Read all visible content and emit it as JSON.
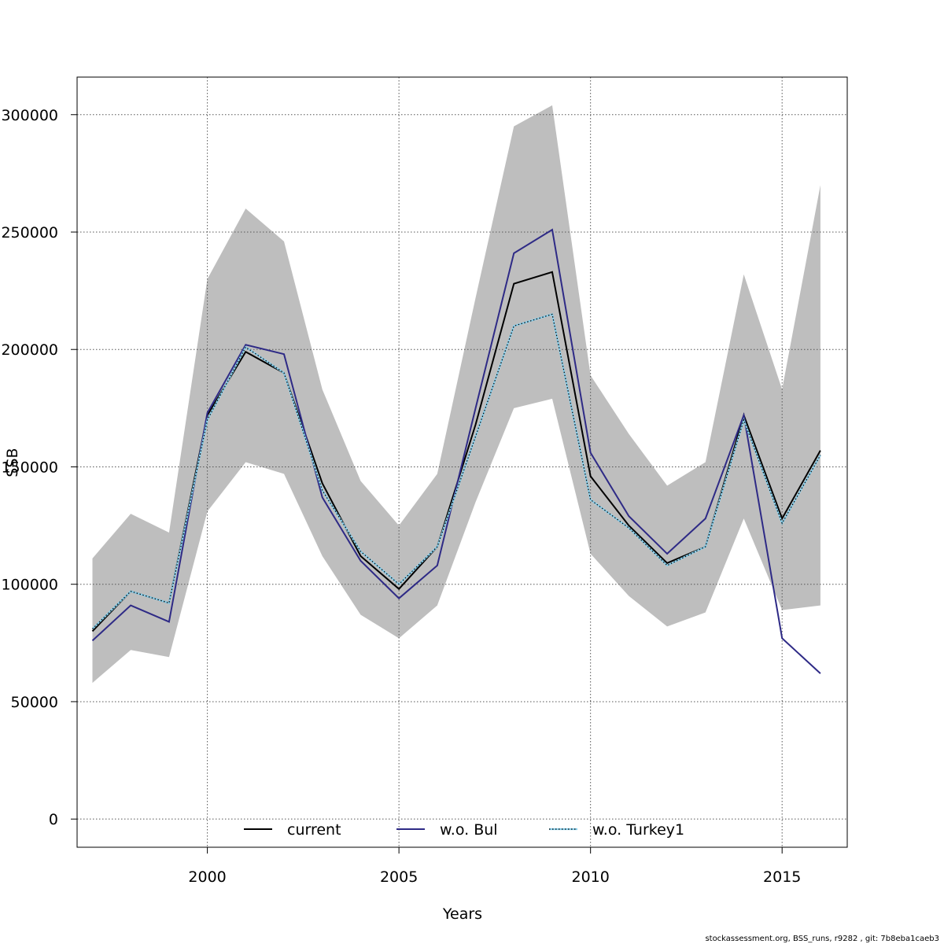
{
  "chart_data": {
    "type": "line",
    "xlabel": "Years",
    "ylabel": "SSB",
    "xlim": [
      1996.6,
      2016.7
    ],
    "ylim": [
      -12000,
      316000
    ],
    "x_ticks": [
      2000,
      2005,
      2010,
      2015
    ],
    "y_ticks": [
      0,
      50000,
      100000,
      150000,
      200000,
      250000,
      300000
    ],
    "grid": true,
    "legend_position": "bottom",
    "x": [
      1997,
      1998,
      1999,
      2000,
      2001,
      2002,
      2003,
      2004,
      2005,
      2006,
      2007,
      2008,
      2009,
      2010,
      2011,
      2012,
      2013,
      2014,
      2015,
      2016
    ],
    "confidence_band": {
      "color": "#bebebe",
      "lower": [
        58000,
        72000,
        69000,
        131000,
        152000,
        147000,
        112000,
        87000,
        77000,
        91000,
        135000,
        175000,
        179000,
        113000,
        95000,
        82000,
        88000,
        128000,
        89000,
        91000
      ],
      "upper": [
        111000,
        130000,
        122000,
        230000,
        260000,
        246000,
        183000,
        144000,
        125000,
        147000,
        222000,
        295000,
        304000,
        189000,
        164000,
        142000,
        152000,
        232000,
        183000,
        270000
      ]
    },
    "series": [
      {
        "name": "current",
        "color": "#000000",
        "style": "solid",
        "values": [
          80000,
          97000,
          92000,
          172000,
          199000,
          190000,
          143000,
          112000,
          98000,
          116000,
          168000,
          228000,
          233000,
          146000,
          125000,
          109000,
          116000,
          172000,
          128000,
          157000
        ]
      },
      {
        "name": "w.o. Bul",
        "color": "#2e2a86",
        "style": "solid",
        "values": [
          76000,
          91000,
          84000,
          173000,
          202000,
          198000,
          137000,
          110000,
          94000,
          108000,
          175000,
          241000,
          251000,
          156000,
          129000,
          113000,
          128000,
          172000,
          77000,
          62000
        ]
      },
      {
        "name": "w.o. Turkey1",
        "color": "#87ceeb",
        "style": "dotted",
        "values": [
          81000,
          97000,
          92000,
          170000,
          201000,
          190000,
          140000,
          114000,
          100000,
          116000,
          163000,
          210000,
          215000,
          136000,
          124000,
          108000,
          116000,
          170000,
          126000,
          155000
        ]
      }
    ]
  },
  "footer": "stockassessment.org, BSS_runs, r9282 , git: 7b8eba1caeb3"
}
